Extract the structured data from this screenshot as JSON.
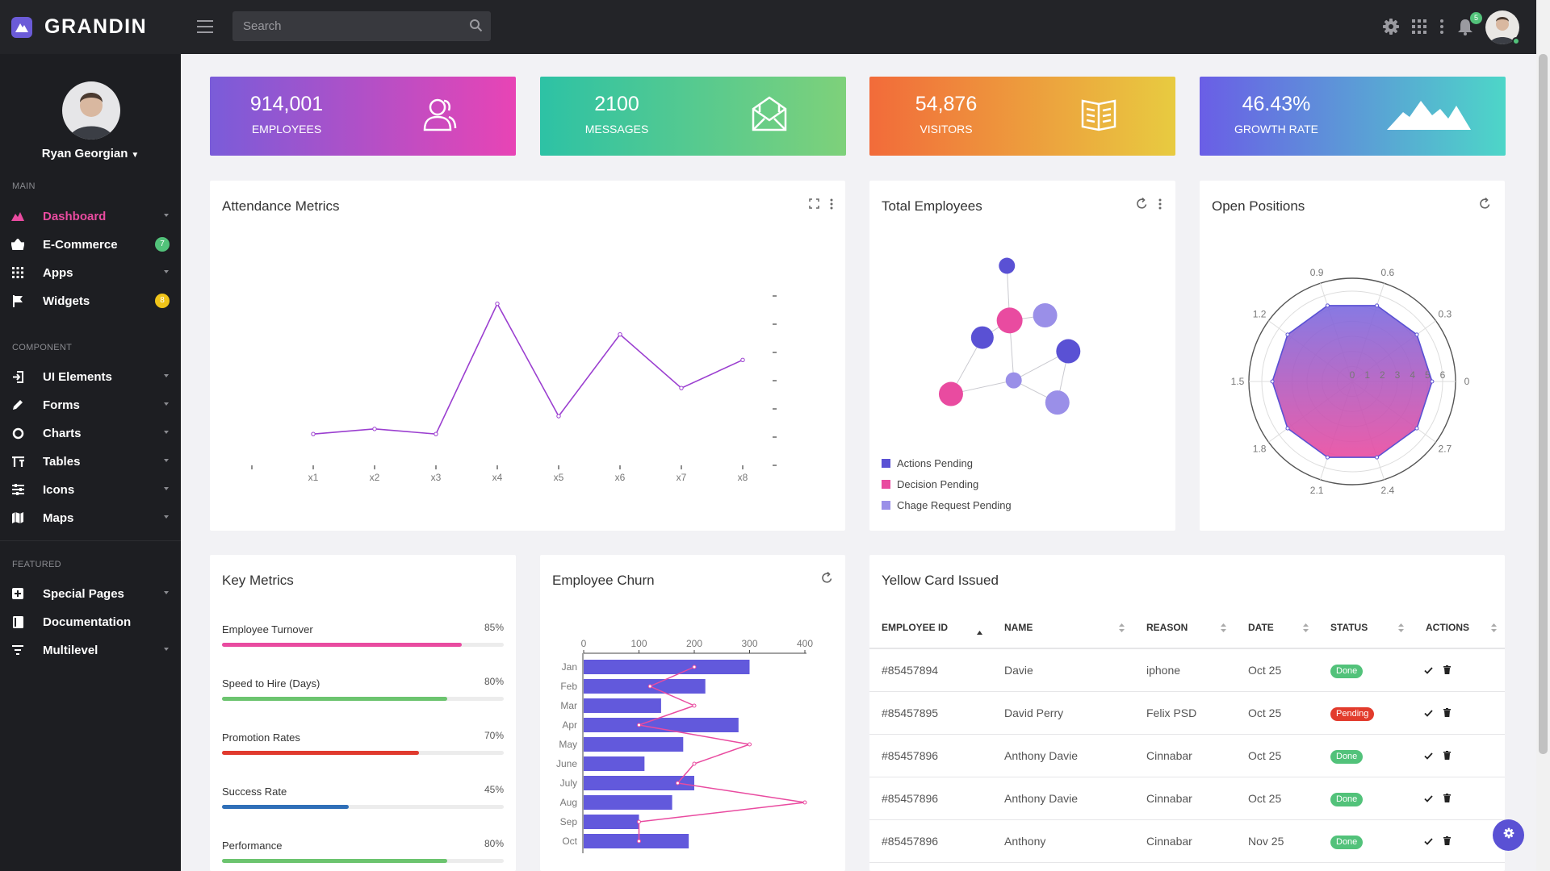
{
  "brand": {
    "name": "GRANDIN"
  },
  "search": {
    "placeholder": "Search"
  },
  "topbar": {
    "notification_count": "5"
  },
  "profile": {
    "name": "Ryan Georgian"
  },
  "sidebar": {
    "sections": [
      {
        "label": "MAIN",
        "items": [
          {
            "label": "Dashboard",
            "icon": "chart-mountain-icon",
            "active": true,
            "arrow": true
          },
          {
            "label": "E-Commerce",
            "icon": "basket-icon",
            "badge": "7",
            "badge_color": "#52c27a"
          },
          {
            "label": "Apps",
            "icon": "grid-icon",
            "arrow": true
          },
          {
            "label": "Widgets",
            "icon": "flag-icon",
            "badge": "8",
            "badge_color": "#f0c419"
          }
        ]
      },
      {
        "label": "COMPONENT",
        "items": [
          {
            "label": "UI Elements",
            "icon": "login-icon",
            "arrow": true
          },
          {
            "label": "Forms",
            "icon": "pencil-icon",
            "arrow": true
          },
          {
            "label": "Charts",
            "icon": "pie-chart-icon",
            "arrow": true
          },
          {
            "label": "Tables",
            "icon": "table-icon",
            "arrow": true
          },
          {
            "label": "Icons",
            "icon": "sliders-icon",
            "arrow": true
          },
          {
            "label": "Maps",
            "icon": "map-icon",
            "arrow": true
          }
        ]
      },
      {
        "label": "FEATURED",
        "items": [
          {
            "label": "Special Pages",
            "icon": "plus-square-icon",
            "arrow": true
          },
          {
            "label": "Documentation",
            "icon": "book-icon"
          },
          {
            "label": "Multilevel",
            "icon": "filter-icon",
            "arrow": true
          }
        ]
      }
    ]
  },
  "stats": [
    {
      "value": "914,001",
      "label": "EMPLOYEES",
      "icon": "users-icon",
      "gradient": [
        "#7a5cd9",
        "#e844b5"
      ]
    },
    {
      "value": "2100",
      "label": "MESSAGES",
      "icon": "mail-open-icon",
      "gradient": [
        "#2dc2a5",
        "#7ed17a"
      ]
    },
    {
      "value": "54,876",
      "label": "VISITORS",
      "icon": "book-open-icon",
      "gradient": [
        "#f26b3a",
        "#e8cb40"
      ]
    },
    {
      "value": "46.43%",
      "label": "GROWTH RATE",
      "icon": "mountain-icon",
      "gradient": [
        "#6a5ee6",
        "#4dd6c8"
      ]
    }
  ],
  "cards": {
    "attendance": {
      "title": "Attendance Metrics"
    },
    "total_employees": {
      "title": "Total Employees"
    },
    "open_positions": {
      "title": "Open Positions"
    },
    "key_metrics": {
      "title": "Key Metrics"
    },
    "churn": {
      "title": "Employee Churn"
    },
    "yellow_card": {
      "title": "Yellow Card Issued"
    }
  },
  "key_metrics": [
    {
      "label": "Employee Turnover",
      "value": "85%",
      "fraction": 0.85,
      "color": "#e94ba0"
    },
    {
      "label": "Speed to Hire (Days)",
      "value": "80%",
      "fraction": 0.8,
      "color": "#6cc46f"
    },
    {
      "label": "Promotion Rates",
      "value": "70%",
      "fraction": 0.7,
      "color": "#e03a2e"
    },
    {
      "label": "Success Rate",
      "value": "45%",
      "fraction": 0.45,
      "color": "#2f6fb8"
    },
    {
      "label": "Performance",
      "value": "80%",
      "fraction": 0.8,
      "color": "#6cc46f"
    }
  ],
  "total_employees_legend": [
    {
      "label": "Actions Pending",
      "color": "#5a51d4"
    },
    {
      "label": "Decision Pending",
      "color": "#e94ba0"
    },
    {
      "label": "Chage Request Pending",
      "color": "#9a8fe8"
    }
  ],
  "yellow_card": {
    "columns": [
      "EMPLOYEE ID",
      "NAME",
      "REASON",
      "DATE",
      "STATUS",
      "ACTIONS"
    ],
    "rows": [
      {
        "id": "#85457894",
        "name": "Davie",
        "reason": "iphone",
        "date": "Oct 25",
        "status": "Done",
        "status_color": "#52c27a"
      },
      {
        "id": "#85457895",
        "name": "David Perry",
        "reason": "Felix PSD",
        "date": "Oct 25",
        "status": "Pending",
        "status_color": "#e23b2c"
      },
      {
        "id": "#85457896",
        "name": "Anthony Davie",
        "reason": "Cinnabar",
        "date": "Oct 25",
        "status": "Done",
        "status_color": "#52c27a"
      },
      {
        "id": "#85457896",
        "name": "Anthony Davie",
        "reason": "Cinnabar",
        "date": "Oct 25",
        "status": "Done",
        "status_color": "#52c27a"
      },
      {
        "id": "#85457896",
        "name": "Anthony",
        "reason": "Cinnabar",
        "date": "Nov 25",
        "status": "Done",
        "status_color": "#52c27a"
      }
    ]
  },
  "chart_data": [
    {
      "type": "line",
      "title": "Attendance Metrics",
      "x": [
        "x1",
        "x2",
        "x3",
        "x4",
        "x5",
        "x6",
        "x7",
        "x8"
      ],
      "series": [
        {
          "values": [
            0.5,
            0.7,
            0.5,
            5.6,
            1.2,
            4.4,
            2.3,
            3.4
          ],
          "color": "#9b3fd0"
        }
      ],
      "ylim": [
        0,
        6
      ]
    },
    {
      "type": "scatter",
      "title": "Total Employees",
      "series": [
        {
          "name": "Actions Pending",
          "color": "#5a51d4",
          "points": [
            [
              0.25,
              0.87,
              10
            ],
            [
              0.07,
              0.45,
              14
            ],
            [
              0.7,
              0.37,
              15
            ]
          ]
        },
        {
          "name": "Decision Pending",
          "color": "#e94ba0",
          "points": [
            [
              0.27,
              0.55,
              16
            ],
            [
              -0.16,
              0.12,
              15
            ]
          ]
        },
        {
          "name": "Chage Request Pending",
          "color": "#9a8fe8",
          "points": [
            [
              0.53,
              0.58,
              15
            ],
            [
              0.3,
              0.2,
              10
            ],
            [
              0.62,
              0.07,
              15
            ]
          ]
        }
      ],
      "links": [
        [
          0,
          3
        ],
        [
          3,
          5
        ],
        [
          3,
          1
        ],
        [
          3,
          6
        ],
        [
          6,
          2
        ],
        [
          6,
          4
        ],
        [
          1,
          4
        ],
        [
          2,
          7
        ],
        [
          6,
          7
        ]
      ]
    },
    {
      "type": "radar",
      "title": "Open Positions",
      "angle_labels": [
        "0",
        "0.3",
        "0.6",
        "0.9",
        "1.2",
        "1.5",
        "1.8",
        "2.1",
        "2.4",
        "2.7"
      ],
      "radial_ticks": [
        "0",
        "1",
        "2",
        "3",
        "4",
        "5",
        "6"
      ],
      "rmax": 6,
      "values": [
        5,
        5,
        5,
        5,
        5,
        5,
        5,
        5,
        5,
        5
      ],
      "fill_gradient": [
        "#7a6be0",
        "#e94ba0"
      ],
      "line_color": "#5a51d4"
    },
    {
      "type": "bar",
      "title": "Employee Churn",
      "orientation": "horizontal",
      "categories": [
        "Jan",
        "Feb",
        "Mar",
        "Apr",
        "May",
        "June",
        "July",
        "Aug",
        "Sep",
        "Oct"
      ],
      "series": [
        {
          "type": "bar",
          "values": [
            300,
            220,
            140,
            280,
            180,
            110,
            200,
            160,
            100,
            190
          ],
          "color": "#6259dc"
        },
        {
          "type": "line",
          "values": [
            200,
            120,
            200,
            100,
            300,
            200,
            170,
            400,
            100,
            100
          ],
          "color": "#e94ba0"
        }
      ],
      "xlim": [
        0,
        400
      ],
      "xticks": [
        0,
        100,
        200,
        300,
        400
      ]
    }
  ]
}
